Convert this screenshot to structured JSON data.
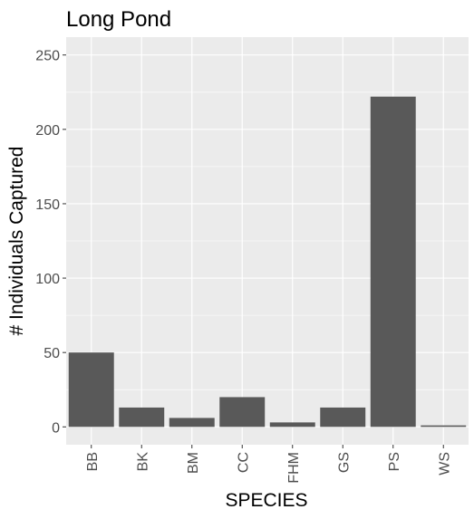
{
  "chart_data": {
    "type": "bar",
    "title": "Long Pond",
    "xlabel": "SPECIES",
    "ylabel": "# Individuals Captured",
    "categories": [
      "BB",
      "BK",
      "BM",
      "CC",
      "FHM",
      "GS",
      "PS",
      "WS"
    ],
    "values": [
      50,
      13,
      6,
      20,
      3,
      13,
      222,
      1
    ],
    "ylim": [
      -12,
      262
    ],
    "yticks": [
      0,
      50,
      100,
      150,
      200,
      250
    ],
    "grid": true,
    "colors": {
      "panel": "#ebebeb",
      "bar": "#595959",
      "grid": "#ffffff",
      "tick_text": "#4d4d4d"
    }
  }
}
